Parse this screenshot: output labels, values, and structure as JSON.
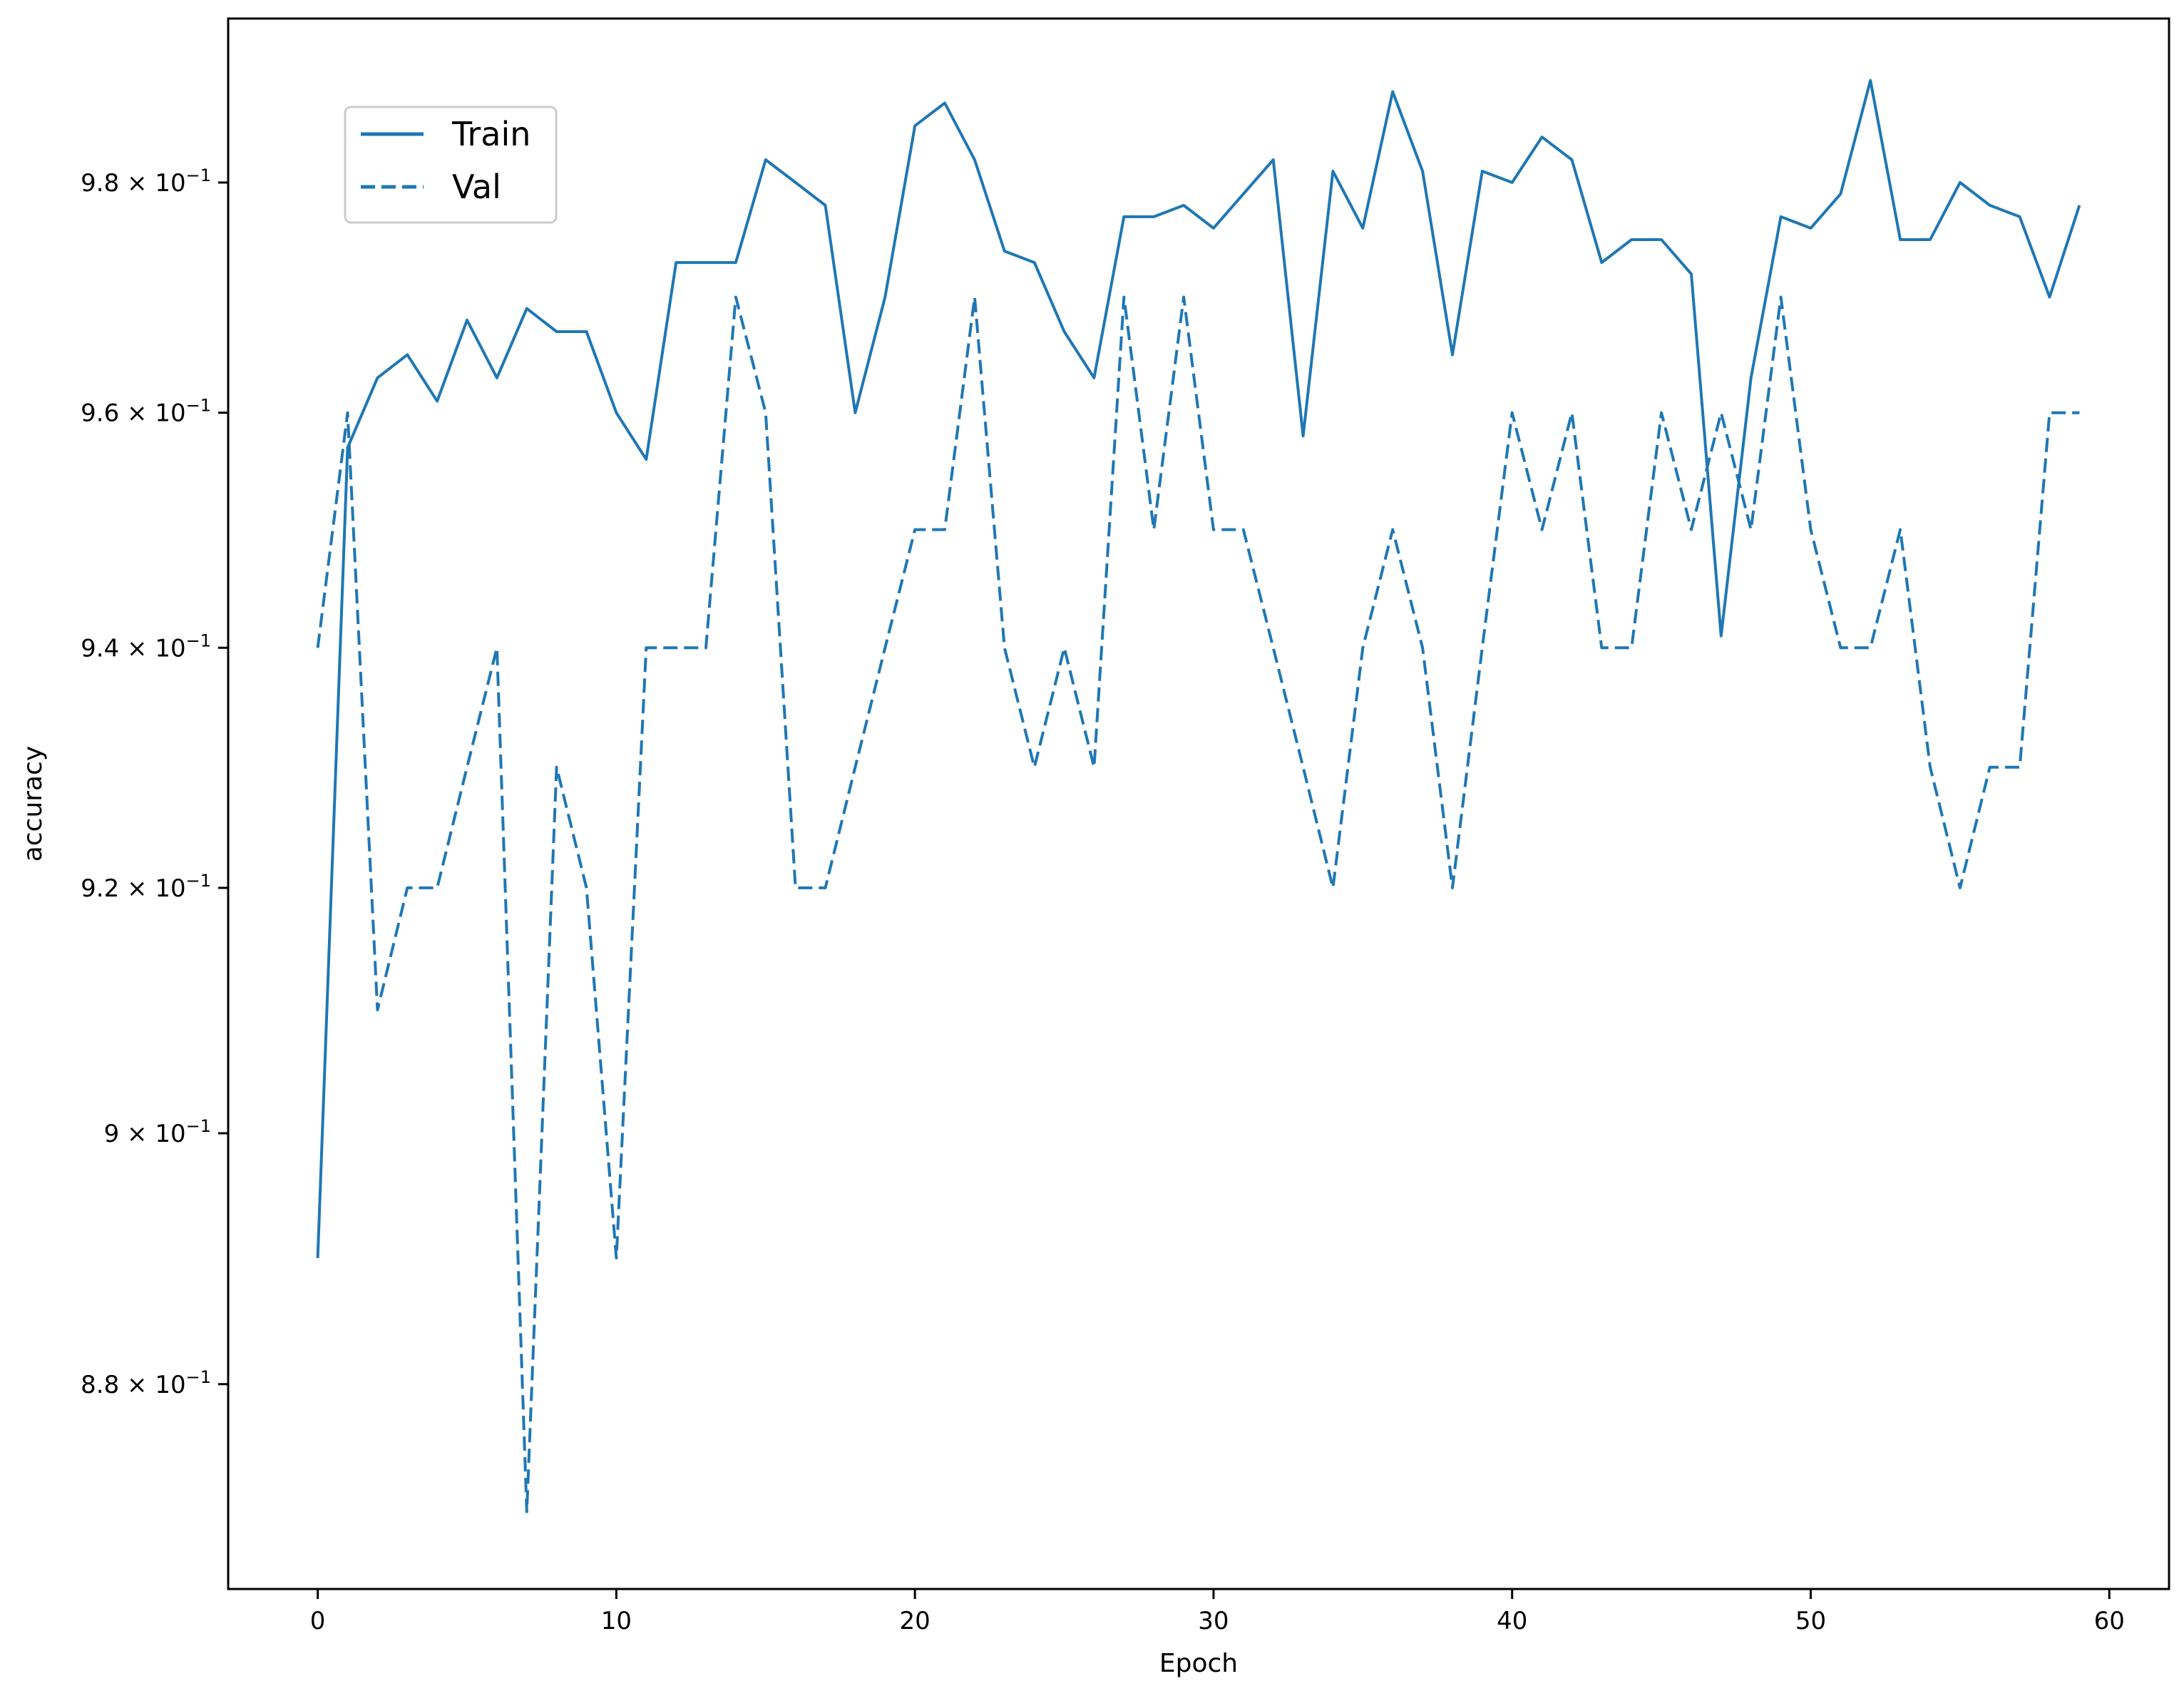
{
  "colors": {
    "line": "#1f77b4",
    "axis": "#000000",
    "background": "#ffffff",
    "legend_border": "#cccccc"
  },
  "chart_data": {
    "type": "line",
    "xlabel": "Epoch",
    "ylabel": "accuracy",
    "yscale": "log",
    "xlim": [
      -3,
      62
    ],
    "ylim": [
      0.864,
      0.9945
    ],
    "grid": false,
    "legend_placement": "upper-left",
    "x_ticks": [
      0,
      10,
      20,
      30,
      40,
      50,
      60
    ],
    "x_tick_labels": [
      "0",
      "10",
      "20",
      "30",
      "40",
      "50",
      "60"
    ],
    "y_ticks": [
      0.88,
      0.9,
      0.92,
      0.94,
      0.96,
      0.98
    ],
    "y_tick_mantissas": [
      "8.8",
      "9",
      "9.2",
      "9.4",
      "9.6",
      "9.8"
    ],
    "y_tick_base": "× 10",
    "y_tick_exponent": "−1",
    "x": [
      0,
      1,
      2,
      3,
      4,
      5,
      6,
      7,
      8,
      9,
      10,
      11,
      12,
      13,
      14,
      15,
      16,
      17,
      18,
      19,
      20,
      21,
      22,
      23,
      24,
      25,
      26,
      27,
      28,
      29,
      30,
      31,
      32,
      33,
      34,
      35,
      36,
      37,
      38,
      39,
      40,
      41,
      42,
      43,
      44,
      45,
      46,
      47,
      48,
      49,
      50,
      51,
      52,
      53,
      54,
      55,
      56,
      57,
      58,
      59
    ],
    "series": [
      {
        "name": "Train",
        "style": "solid",
        "values": [
          0.89,
          0.957,
          0.963,
          0.965,
          0.961,
          0.968,
          0.963,
          0.969,
          0.967,
          0.967,
          0.96,
          0.956,
          0.973,
          0.973,
          0.973,
          0.982,
          0.98,
          0.978,
          0.96,
          0.97,
          0.985,
          0.987,
          0.982,
          0.974,
          0.973,
          0.967,
          0.963,
          0.977,
          0.977,
          0.978,
          0.976,
          0.979,
          0.982,
          0.958,
          0.981,
          0.976,
          0.988,
          0.981,
          0.965,
          0.981,
          0.98,
          0.984,
          0.982,
          0.973,
          0.975,
          0.975,
          0.972,
          0.941,
          0.963,
          0.977,
          0.976,
          0.979,
          0.989,
          0.975,
          0.975,
          0.98,
          0.978,
          0.977,
          0.97,
          0.978
        ]
      },
      {
        "name": "Val",
        "style": "dashed",
        "values": [
          0.94,
          0.96,
          0.91,
          0.92,
          0.92,
          0.93,
          0.94,
          0.87,
          0.93,
          0.92,
          0.89,
          0.94,
          0.94,
          0.94,
          0.97,
          0.96,
          0.92,
          0.92,
          0.93,
          0.94,
          0.95,
          0.95,
          0.97,
          0.94,
          0.93,
          0.94,
          0.93,
          0.97,
          0.95,
          0.97,
          0.95,
          0.95,
          0.94,
          0.93,
          0.92,
          0.94,
          0.95,
          0.94,
          0.92,
          0.94,
          0.96,
          0.95,
          0.96,
          0.94,
          0.94,
          0.96,
          0.95,
          0.96,
          0.95,
          0.97,
          0.95,
          0.94,
          0.94,
          0.95,
          0.93,
          0.92,
          0.93,
          0.93,
          0.96,
          0.96
        ]
      }
    ]
  }
}
